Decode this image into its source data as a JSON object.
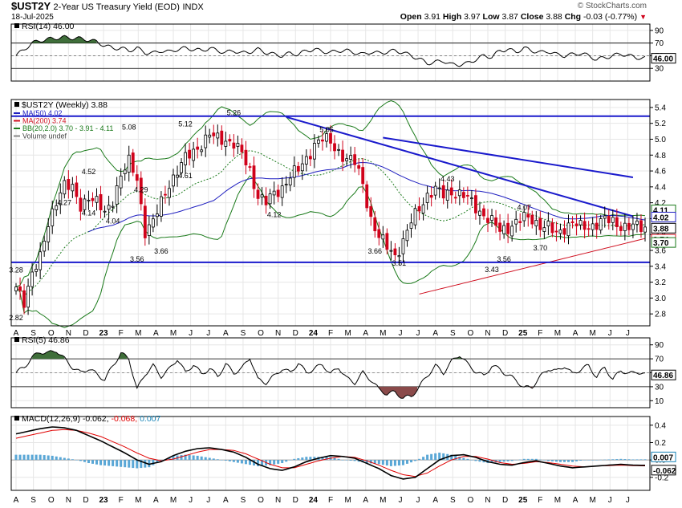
{
  "header": {
    "symbol": "$UST2Y",
    "description": "2-Year US Treasury Yield (EOD)",
    "exchange": "INDX",
    "date": "18-Jul-2025",
    "copyright": "© StockCharts.com",
    "open_label": "Open",
    "open": "3.91",
    "high_label": "High",
    "high": "3.97",
    "low_label": "Low",
    "low": "3.87",
    "close_label": "Close",
    "close": "3.88",
    "chg_label": "Chg",
    "chg": "-0.03 (-0.77%)"
  },
  "colors": {
    "candle_up": "#000000",
    "candle_down": "#d0021b",
    "ma50": "#1f1fc0",
    "ma200": "#d01020",
    "bollinger": "#1a7a1a",
    "trendline": "#1a1acc",
    "macd_line": "#000000",
    "signal_line": "#e00000",
    "histogram": "#5aa7d6",
    "rsi_fill": "#3f6e3a",
    "rsi_low_fill": "#8a4a4a"
  },
  "chart_data": [
    {
      "type": "line",
      "name": "RSI(14)",
      "title": "RSI(14) 46.00",
      "last_value": 46.0,
      "last_label": "46.00",
      "ylim": [
        10,
        100
      ],
      "y_ticks": [
        90,
        70,
        50,
        30
      ],
      "y_tick_labels": [
        "90",
        "70",
        "50",
        "30"
      ],
      "overbought": 70,
      "oversold": 30,
      "x": [
        0,
        2,
        4,
        6,
        8,
        10,
        12,
        14,
        16,
        18,
        20,
        22,
        24,
        26,
        28,
        30,
        32,
        34,
        36,
        38,
        40,
        42,
        44,
        46,
        48,
        50,
        52,
        54,
        56,
        58,
        60,
        62,
        64,
        66,
        68,
        70,
        72,
        74,
        76,
        78,
        80,
        82,
        84,
        86,
        88,
        90,
        92,
        94,
        96,
        98,
        100,
        102,
        104,
        106,
        108,
        110,
        112,
        114,
        116,
        118,
        120,
        122,
        124,
        126,
        128,
        130,
        132,
        134,
        136,
        138,
        140,
        142,
        144,
        146,
        148,
        150,
        152,
        154,
        156
      ],
      "values": [
        50,
        60,
        70,
        74,
        76,
        78,
        79,
        78,
        77,
        75,
        72,
        66,
        62,
        62,
        58,
        62,
        55,
        54,
        58,
        56,
        60,
        62,
        60,
        58,
        62,
        58,
        55,
        58,
        54,
        56,
        60,
        55,
        52,
        50,
        54,
        52,
        58,
        60,
        57,
        55,
        58,
        58,
        55,
        52,
        56,
        54,
        56,
        58,
        55,
        50,
        45,
        38,
        40,
        42,
        36,
        36,
        38,
        44,
        50,
        48,
        58,
        60,
        56,
        62,
        58,
        55,
        57,
        52,
        50,
        52,
        54,
        50,
        44,
        47,
        50,
        53,
        50,
        47,
        46
      ]
    },
    {
      "type": "candlestick",
      "name": "$UST2Y (Weekly)",
      "title": "$UST2Y (Weekly) 3.88",
      "ylim": [
        2.65,
        5.5
      ],
      "y_ticks": [
        5.4,
        5.2,
        5.0,
        4.8,
        4.6,
        4.4,
        4.2,
        4.0,
        3.8,
        3.6,
        3.4,
        3.2,
        3.0,
        2.8
      ],
      "y_tick_labels": [
        "5.4",
        "5.2",
        "5.0",
        "4.8",
        "4.6",
        "4.4",
        "4.2",
        "4.0",
        "3.8",
        "3.6",
        "3.4",
        "3.2",
        "3.0",
        "2.8"
      ],
      "x_labels": [
        "A",
        "S",
        "O",
        "N",
        "D",
        "23",
        "F",
        "M",
        "A",
        "M",
        "J",
        "J",
        "A",
        "S",
        "O",
        "N",
        "D",
        "24",
        "F",
        "M",
        "A",
        "M",
        "J",
        "J",
        "A",
        "S",
        "O",
        "N",
        "D",
        "25",
        "F",
        "M",
        "A",
        "M",
        "J",
        "J"
      ],
      "x_label_weeks": [
        0,
        4.3,
        8.7,
        13,
        17.3,
        21.7,
        26,
        30.3,
        34.7,
        39,
        43.3,
        47.7,
        52,
        56.3,
        60.7,
        65,
        69.3,
        73.7,
        78,
        82.3,
        86.7,
        91,
        95.3,
        99.7,
        104,
        108.3,
        112.7,
        117,
        121.3,
        125.7,
        130,
        134.3,
        138.7,
        143,
        147.3,
        151.7
      ],
      "legend": [
        {
          "name": "MA(50) 4.02",
          "color": "#1f1fc0"
        },
        {
          "name": "MA(200) 3.74",
          "color": "#d01020"
        },
        {
          "name": "BB(20,2.0) 3.70 - 3.91 - 4.11",
          "color": "#1a7a1a"
        },
        {
          "name": "Volume undef",
          "color": "#888888"
        }
      ],
      "horizontal_lines": [
        5.29,
        3.45
      ],
      "trendlines": [
        {
          "from": [
            67,
            5.28
          ],
          "to": [
            153,
            4.03
          ]
        },
        {
          "from": [
            91,
            5.02
          ],
          "to": [
            153,
            4.52
          ]
        }
      ],
      "close_key_weeks": [
        0,
        2,
        4,
        6,
        8,
        10,
        12,
        14,
        16,
        18,
        20,
        22,
        24,
        26,
        28,
        30,
        32,
        34,
        36,
        38,
        40,
        42,
        44,
        46,
        48,
        50,
        52,
        54,
        56,
        58,
        60,
        62,
        64,
        66,
        68,
        70,
        72,
        74,
        76,
        78,
        80,
        82,
        84,
        86,
        88,
        90,
        92,
        94,
        96,
        98,
        100,
        102,
        104,
        106,
        108,
        110,
        112,
        114,
        116,
        118,
        120,
        122,
        124,
        126,
        128,
        130,
        132,
        134,
        136,
        138,
        140,
        142,
        144,
        146,
        148,
        150,
        152,
        154,
        156
      ],
      "close_key_values": [
        3.1,
        2.95,
        3.35,
        3.5,
        3.9,
        4.25,
        4.45,
        4.35,
        4.15,
        4.3,
        4.2,
        4.05,
        4.25,
        4.55,
        4.7,
        4.5,
        3.85,
        3.95,
        4.2,
        4.45,
        4.6,
        4.75,
        4.85,
        4.95,
        5.05,
        5.0,
        5.0,
        4.95,
        4.8,
        4.6,
        4.3,
        4.2,
        4.3,
        4.4,
        4.55,
        4.6,
        4.75,
        4.95,
        5.0,
        4.95,
        4.85,
        4.75,
        4.7,
        4.45,
        4.0,
        3.75,
        3.65,
        3.55,
        3.7,
        3.95,
        4.15,
        4.3,
        4.35,
        4.3,
        4.35,
        4.3,
        4.25,
        4.15,
        4.05,
        3.95,
        3.85,
        3.9,
        3.95,
        4.0,
        4.0,
        3.92,
        3.88,
        3.8,
        3.9,
        3.95,
        3.88,
        3.9,
        3.95,
        3.98,
        3.95,
        3.92,
        3.9,
        3.89,
        3.88
      ],
      "annotations": [
        {
          "week": 0,
          "value": 2.82,
          "label": "2.82",
          "pos": "below"
        },
        {
          "week": 0,
          "value": 3.28,
          "label": "3.28",
          "pos": "above"
        },
        {
          "week": 12,
          "value": 4.27,
          "label": "4.27",
          "pos": "below"
        },
        {
          "week": 18,
          "value": 4.52,
          "label": "4.52",
          "pos": "above"
        },
        {
          "week": 18,
          "value": 4.14,
          "label": "4.14",
          "pos": "below"
        },
        {
          "week": 24,
          "value": 4.04,
          "label": "4.04",
          "pos": "below"
        },
        {
          "week": 28,
          "value": 5.08,
          "label": "5.08",
          "pos": "above"
        },
        {
          "week": 31,
          "value": 4.29,
          "label": "4.29",
          "pos": "above"
        },
        {
          "week": 30,
          "value": 3.56,
          "label": "3.56",
          "pos": "below"
        },
        {
          "week": 36,
          "value": 3.66,
          "label": "3.66",
          "pos": "below"
        },
        {
          "week": 42,
          "value": 5.12,
          "label": "5.12",
          "pos": "above"
        },
        {
          "week": 42,
          "value": 4.61,
          "label": "4.61",
          "pos": "below"
        },
        {
          "week": 54,
          "value": 5.26,
          "label": "5.26",
          "pos": "above"
        },
        {
          "week": 64,
          "value": 4.12,
          "label": "4.12",
          "pos": "below"
        },
        {
          "week": 77,
          "value": 5.05,
          "label": "5.05",
          "pos": "above"
        },
        {
          "week": 89,
          "value": 3.66,
          "label": "3.66",
          "pos": "below"
        },
        {
          "week": 95,
          "value": 3.51,
          "label": "3.51",
          "pos": "below"
        },
        {
          "week": 107,
          "value": 4.43,
          "label": "4.43",
          "pos": "above"
        },
        {
          "week": 118,
          "value": 3.43,
          "label": "3.43",
          "pos": "below"
        },
        {
          "week": 121,
          "value": 3.56,
          "label": "3.56",
          "pos": "below"
        },
        {
          "week": 126,
          "value": 4.07,
          "label": "4.07",
          "pos": "above"
        },
        {
          "week": 130,
          "value": 3.7,
          "label": "3.70",
          "pos": "below"
        }
      ],
      "right_labels": [
        {
          "value": 4.11,
          "label": "4.11"
        },
        {
          "value": 4.02,
          "label": "4.02"
        },
        {
          "value": 3.88,
          "label": "3.88"
        },
        {
          "value": 3.74,
          "label": "3.74"
        },
        {
          "value": 3.7,
          "label": "3.70"
        }
      ]
    },
    {
      "type": "line",
      "name": "RSI(5)",
      "title": "RSI(5) 46.86",
      "last_value": 46.86,
      "last_label": "46.86",
      "ylim": [
        0,
        100
      ],
      "y_ticks": [
        90,
        70,
        50,
        30,
        10
      ],
      "y_tick_labels": [
        "90",
        "70",
        "50",
        "30",
        "10"
      ],
      "overbought": 70,
      "oversold": 30,
      "x": [
        0,
        2,
        4,
        6,
        8,
        10,
        12,
        14,
        16,
        18,
        20,
        22,
        24,
        26,
        28,
        30,
        32,
        34,
        36,
        38,
        40,
        42,
        44,
        46,
        48,
        50,
        52,
        54,
        56,
        58,
        60,
        62,
        64,
        66,
        68,
        70,
        72,
        74,
        76,
        78,
        80,
        82,
        84,
        86,
        88,
        90,
        92,
        94,
        96,
        98,
        100,
        102,
        104,
        106,
        108,
        110,
        112,
        114,
        116,
        118,
        120,
        122,
        124,
        126,
        128,
        130,
        132,
        134,
        136,
        138,
        140,
        142,
        144,
        146,
        148,
        150,
        152,
        154,
        156
      ],
      "values": [
        50,
        58,
        72,
        80,
        78,
        82,
        70,
        58,
        50,
        56,
        48,
        40,
        60,
        78,
        70,
        26,
        48,
        60,
        45,
        55,
        70,
        50,
        62,
        48,
        56,
        45,
        62,
        50,
        56,
        72,
        40,
        36,
        45,
        56,
        50,
        64,
        50,
        56,
        62,
        48,
        58,
        42,
        36,
        50,
        40,
        26,
        20,
        22,
        14,
        16,
        30,
        46,
        60,
        50,
        66,
        76,
        62,
        52,
        45,
        60,
        55,
        46,
        40,
        28,
        30,
        44,
        56,
        52,
        60,
        48,
        55,
        60,
        44,
        58,
        40,
        54,
        48,
        52,
        47
      ]
    },
    {
      "type": "line",
      "name": "MACD(12,26,9)",
      "title": "MACD(12,26,9)",
      "macd_label": "-0.062",
      "signal_label": "-0.068",
      "hist_label": "0.007",
      "ylim": [
        -0.35,
        0.5
      ],
      "y_ticks": [
        0.4,
        0.2,
        0.0,
        -0.2
      ],
      "y_tick_labels": [
        "0.4",
        "0.2",
        "0.0",
        "-0.2"
      ],
      "right_labels": [
        {
          "value": 0.007,
          "label": "0.007"
        },
        {
          "value": -0.062,
          "label": "-0.062"
        }
      ],
      "x": [
        0,
        3,
        6,
        9,
        12,
        15,
        18,
        21,
        24,
        27,
        30,
        33,
        36,
        39,
        42,
        45,
        48,
        51,
        54,
        57,
        60,
        63,
        66,
        69,
        72,
        75,
        78,
        81,
        84,
        87,
        90,
        93,
        96,
        99,
        102,
        105,
        108,
        111,
        114,
        117,
        120,
        123,
        126,
        129,
        132,
        135,
        138,
        141,
        144,
        147,
        150,
        153,
        156
      ],
      "macd": [
        0.3,
        0.33,
        0.36,
        0.38,
        0.37,
        0.34,
        0.28,
        0.22,
        0.15,
        0.08,
        0.0,
        -0.05,
        -0.02,
        0.05,
        0.1,
        0.13,
        0.14,
        0.12,
        0.09,
        0.03,
        -0.05,
        -0.1,
        -0.12,
        -0.08,
        -0.02,
        0.02,
        0.05,
        0.04,
        0.02,
        -0.04,
        -0.1,
        -0.18,
        -0.22,
        -0.2,
        -0.1,
        0.0,
        0.05,
        0.06,
        0.03,
        -0.02,
        -0.05,
        -0.06,
        -0.03,
        -0.01,
        -0.04,
        -0.07,
        -0.09,
        -0.08,
        -0.07,
        -0.06,
        -0.05,
        -0.06,
        -0.062
      ],
      "signal": [
        0.25,
        0.28,
        0.31,
        0.34,
        0.35,
        0.34,
        0.31,
        0.27,
        0.21,
        0.15,
        0.08,
        0.02,
        -0.01,
        0.01,
        0.05,
        0.09,
        0.12,
        0.12,
        0.11,
        0.07,
        0.01,
        -0.05,
        -0.09,
        -0.09,
        -0.05,
        -0.01,
        0.02,
        0.04,
        0.03,
        -0.01,
        -0.06,
        -0.12,
        -0.17,
        -0.19,
        -0.15,
        -0.07,
        0.0,
        0.04,
        0.04,
        0.01,
        -0.03,
        -0.05,
        -0.04,
        -0.02,
        -0.03,
        -0.05,
        -0.07,
        -0.08,
        -0.07,
        -0.065,
        -0.06,
        -0.065,
        -0.068
      ]
    }
  ]
}
